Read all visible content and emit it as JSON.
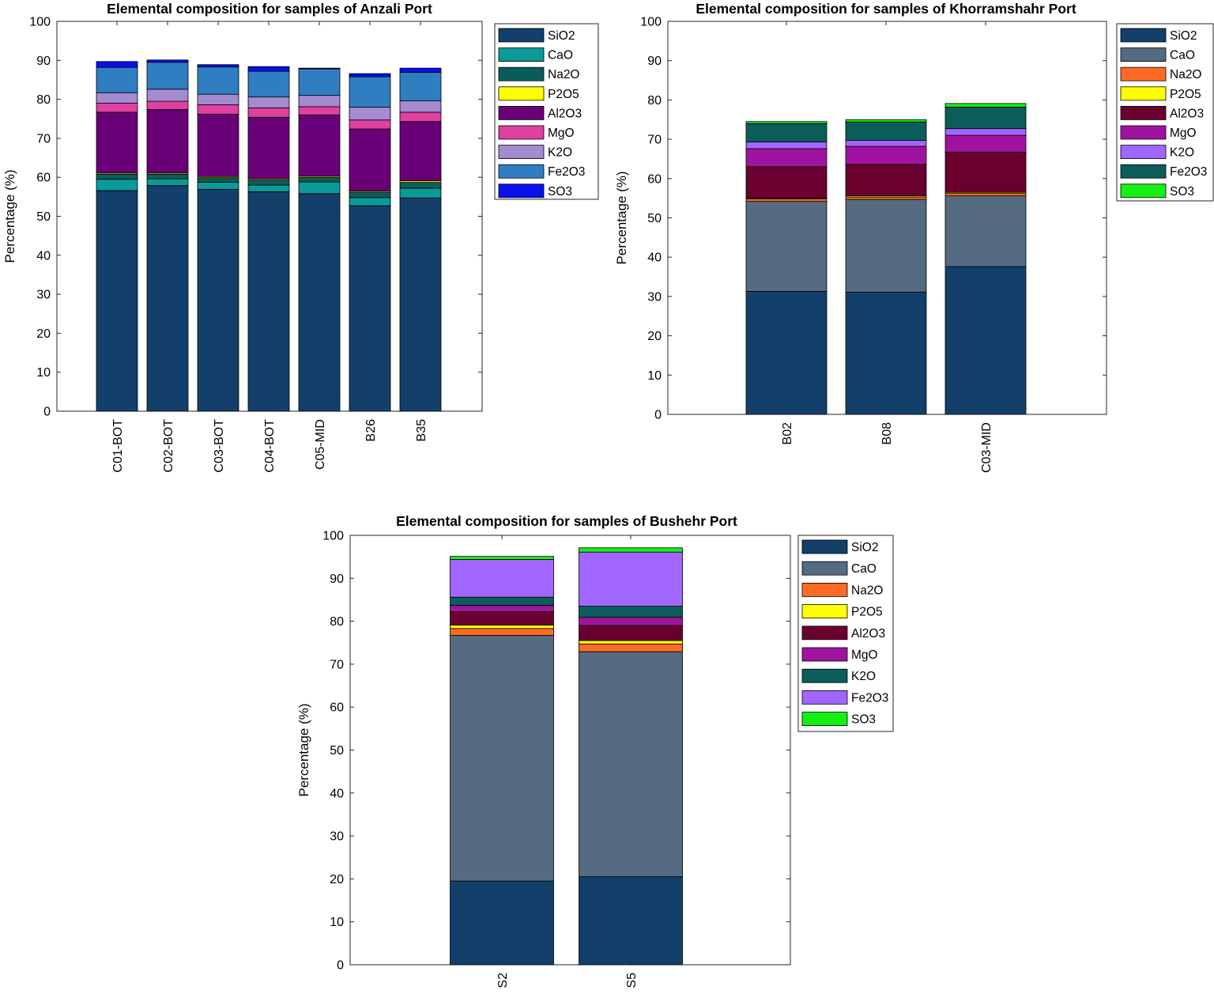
{
  "chart_data": [
    {
      "type": "bar",
      "stacked": true,
      "title": "Elemental composition for samples of Anzali Port",
      "ylabel": "Percentage (%)",
      "xlabel": "",
      "ylim": [
        0,
        100
      ],
      "yticks": [
        "0",
        "10",
        "20",
        "30",
        "40",
        "50",
        "60",
        "70",
        "80",
        "90",
        "100"
      ],
      "grid": false,
      "legend_placement": "outside-right",
      "categories": [
        "C01-BOT",
        "C02-BOT",
        "C03-BOT",
        "C04-BOT",
        "C05-MID",
        "B26",
        "B35"
      ],
      "series": [
        {
          "name": "SiO2",
          "color": "#12406A",
          "values": [
            56.6,
            57.9,
            56.9,
            56.3,
            55.8,
            52.7,
            54.7
          ]
        },
        {
          "name": "CaO",
          "color": "#0B9A9A",
          "values": [
            2.9,
            1.7,
            1.8,
            1.7,
            3.0,
            2.1,
            2.5
          ]
        },
        {
          "name": "Na2O",
          "color": "#0A5D58",
          "values": [
            1.3,
            1.2,
            1.2,
            1.3,
            1.2,
            1.4,
            1.5
          ]
        },
        {
          "name": "P2O5",
          "color": "#FFFF00",
          "values": [
            0.3,
            0.3,
            0.3,
            0.3,
            0.3,
            0.3,
            0.4
          ]
        },
        {
          "name": "Al2O3",
          "color": "#6A0078",
          "values": [
            15.6,
            16.3,
            16.0,
            15.8,
            15.7,
            15.9,
            15.2
          ]
        },
        {
          "name": "MgO",
          "color": "#E040A0",
          "values": [
            2.3,
            2.1,
            2.4,
            2.4,
            2.1,
            2.3,
            2.4
          ]
        },
        {
          "name": "K2O",
          "color": "#A48ACF",
          "values": [
            2.7,
            3.1,
            2.7,
            2.8,
            2.9,
            3.3,
            2.9
          ]
        },
        {
          "name": "Fe2O3",
          "color": "#2F7EC2",
          "values": [
            6.5,
            6.9,
            7.0,
            6.6,
            6.8,
            7.8,
            7.3
          ]
        },
        {
          "name": "SO3",
          "color": "#0A10EE",
          "values": [
            1.5,
            0.6,
            0.6,
            1.2,
            0.2,
            0.8,
            1.1
          ]
        }
      ]
    },
    {
      "type": "bar",
      "stacked": true,
      "title": "Elemental composition for samples of Khorramshahr Port",
      "ylabel": "Percentage (%)",
      "xlabel": "",
      "ylim": [
        0,
        100
      ],
      "yticks": [
        "0",
        "10",
        "20",
        "30",
        "40",
        "50",
        "60",
        "70",
        "80",
        "90",
        "100"
      ],
      "grid": false,
      "legend_placement": "outside-right",
      "categories": [
        "B02",
        "B08",
        "C03-MID"
      ],
      "series": [
        {
          "name": "SiO2",
          "color": "#12406A",
          "values": [
            31.3,
            31.1,
            37.6
          ]
        },
        {
          "name": "CaO",
          "color": "#546B82",
          "values": [
            22.9,
            23.6,
            18.0
          ]
        },
        {
          "name": "Na2O",
          "color": "#FF6B25",
          "values": [
            0.6,
            0.6,
            0.6
          ]
        },
        {
          "name": "P2O5",
          "color": "#FFFF00",
          "values": [
            0.2,
            0.3,
            0.3
          ]
        },
        {
          "name": "Al2O3",
          "color": "#6A0030",
          "values": [
            8.0,
            8.0,
            10.2
          ]
        },
        {
          "name": "MgO",
          "color": "#A0139E",
          "values": [
            4.6,
            4.6,
            4.3
          ]
        },
        {
          "name": "K2O",
          "color": "#A066FF",
          "values": [
            1.7,
            1.5,
            1.7
          ]
        },
        {
          "name": "Fe2O3",
          "color": "#0A5D58",
          "values": [
            4.7,
            4.7,
            5.5
          ]
        },
        {
          "name": "SO3",
          "color": "#14F014",
          "values": [
            0.5,
            0.6,
            0.9
          ]
        }
      ]
    },
    {
      "type": "bar",
      "stacked": true,
      "title": "Elemental composition for samples of Bushehr Port",
      "ylabel": "Percentage (%)",
      "xlabel": "",
      "ylim": [
        0,
        100
      ],
      "yticks": [
        "0",
        "10",
        "20",
        "30",
        "40",
        "50",
        "60",
        "70",
        "80",
        "90",
        "100"
      ],
      "grid": false,
      "legend_placement": "outside-right",
      "categories": [
        "S2",
        "S5"
      ],
      "series": [
        {
          "name": "SiO2",
          "color": "#12406A",
          "values": [
            19.5,
            20.5
          ]
        },
        {
          "name": "CaO",
          "color": "#546B82",
          "values": [
            57.2,
            52.4
          ]
        },
        {
          "name": "Na2O",
          "color": "#FF6B25",
          "values": [
            1.6,
            1.8
          ]
        },
        {
          "name": "P2O5",
          "color": "#FFFF00",
          "values": [
            0.8,
            0.8
          ]
        },
        {
          "name": "Al2O3",
          "color": "#6A0030",
          "values": [
            3.1,
            3.5
          ]
        },
        {
          "name": "MgO",
          "color": "#A0139E",
          "values": [
            1.5,
            1.9
          ]
        },
        {
          "name": "K2O",
          "color": "#0A5D58",
          "values": [
            1.9,
            2.6
          ]
        },
        {
          "name": "Fe2O3",
          "color": "#A066FF",
          "values": [
            8.8,
            12.6
          ]
        },
        {
          "name": "SO3",
          "color": "#14F014",
          "values": [
            0.7,
            1.0
          ]
        }
      ]
    }
  ]
}
